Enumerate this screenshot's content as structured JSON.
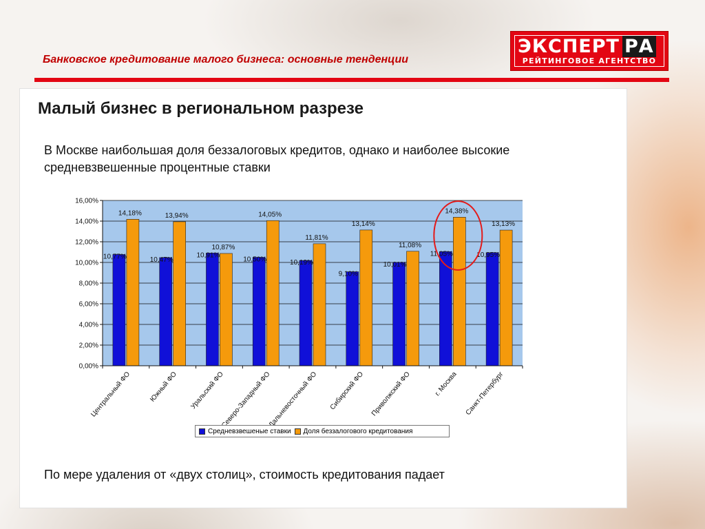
{
  "header": {
    "title": "Банковское кредитование малого бизнеса: основные тенденции"
  },
  "logo": {
    "top_white": "ЭКСПЕРТ",
    "top_black": "РА",
    "bottom": "РЕЙТИНГОВОЕ АГЕНТСТВО"
  },
  "page_title": "Малый бизнес в региональном разрезе",
  "subtitle": "В Москве наибольшая доля беззалоговых кредитов, однако и наиболее высокие средневзвешенные процентные ставки",
  "footer_text": "По мере удаления от «двух столиц», стоимость кредитования падает",
  "colors": {
    "series1": "#1010d8",
    "series2": "#f59a0c",
    "plot_bg": "#a6c8ec",
    "highlight": "#e31b1b",
    "accent": "#e30613"
  },
  "chart_data": {
    "type": "bar",
    "categories": [
      "Центральный ФО",
      "Южный ФО",
      "Уральский ФО",
      "Северо-Западный ФО",
      "Дальневосточный ФО",
      "Сибирский ФО",
      "Приволжский ФО",
      "г. Москва",
      "Санкт-Петербург"
    ],
    "series": [
      {
        "name": "Средневзвешеные ставки",
        "values": [
          10.77,
          10.47,
          10.91,
          10.5,
          10.19,
          9.1,
          10.01,
          11.05,
          10.95
        ],
        "labels": [
          "10,77%",
          "10,47%",
          "10,91%",
          "10,50%",
          "10,19%",
          "9,10%",
          "10,01%",
          "11,05%",
          "10,95%"
        ]
      },
      {
        "name": "Доля беззалогового кредитования",
        "values": [
          14.18,
          13.94,
          10.87,
          14.05,
          11.81,
          13.14,
          11.08,
          14.38,
          13.13
        ],
        "labels": [
          "14,18%",
          "13,94%",
          "10,87%",
          "14,05%",
          "11,81%",
          "13,14%",
          "11,08%",
          "14,38%",
          "13,13%"
        ]
      }
    ],
    "ylim": [
      0,
      16
    ],
    "yticks": [
      "0,00%",
      "2,00%",
      "4,00%",
      "6,00%",
      "8,00%",
      "10,00%",
      "12,00%",
      "14,00%",
      "16,00%"
    ],
    "grid": true,
    "legend_position": "bottom",
    "highlight_category": "г. Москва"
  }
}
